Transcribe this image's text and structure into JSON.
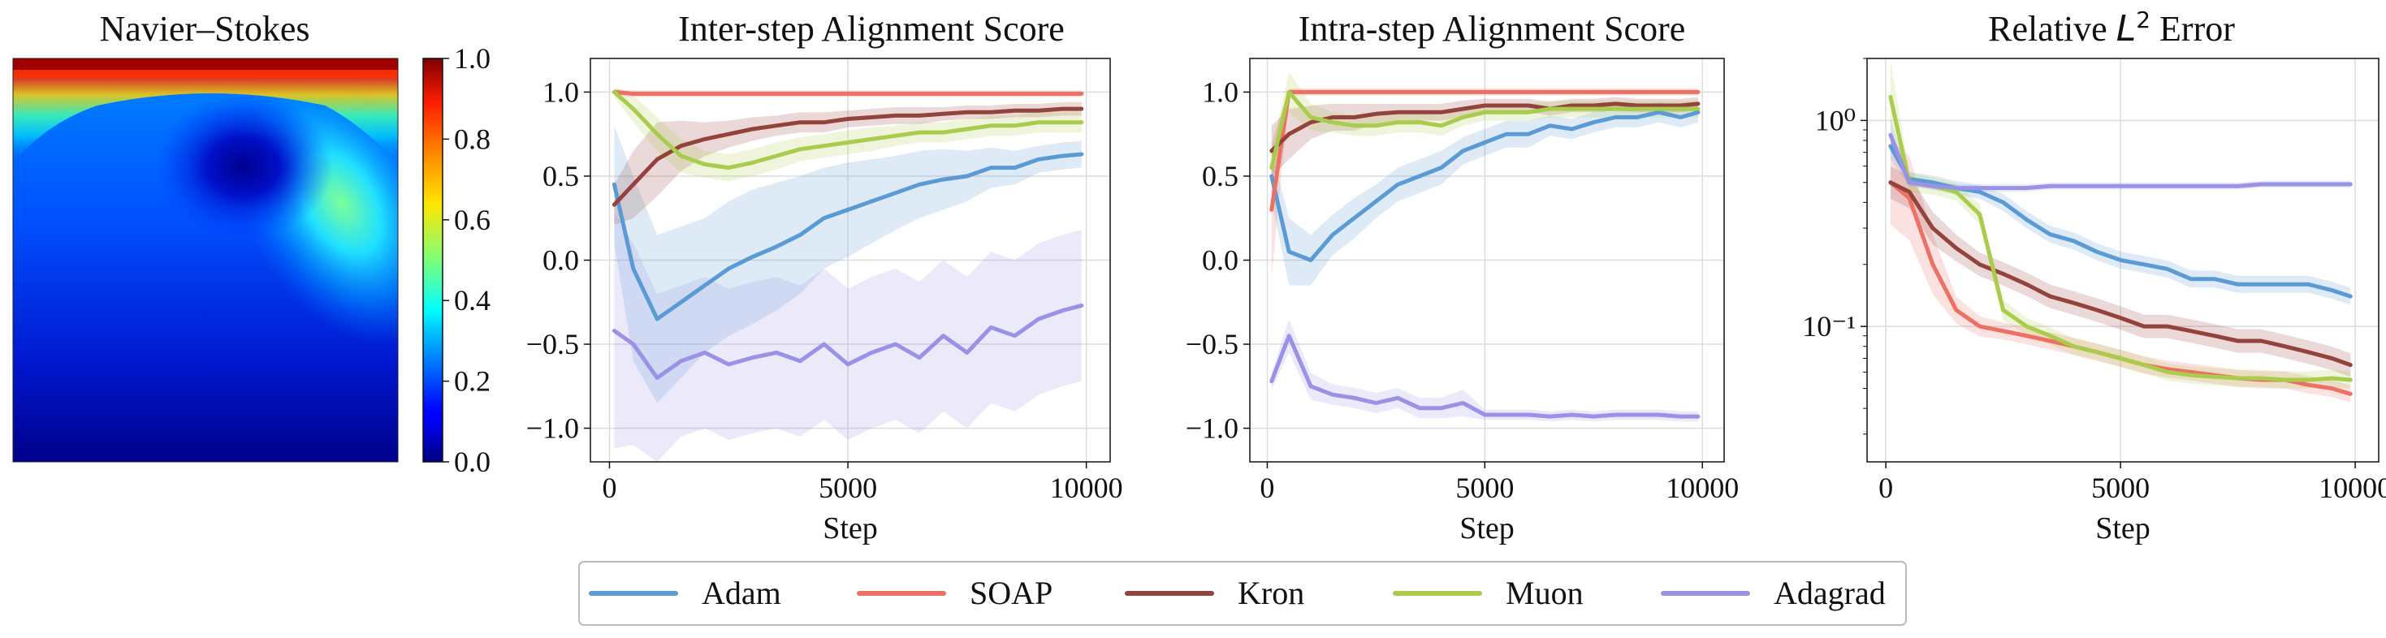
{
  "colors": {
    "Adam": "#5b9bd5",
    "SOAP": "#ec7063",
    "Kron": "#94423c",
    "Muon": "#a9cc4c",
    "Adagrad": "#9a92e6"
  },
  "heatmap": {
    "title": "Navier–Stokes",
    "colorbar_ticks": [
      "0.0",
      "0.2",
      "0.4",
      "0.6",
      "0.8",
      "1.0"
    ],
    "colorbar_range": [
      0,
      1
    ],
    "colormap": "jet"
  },
  "legend": {
    "entries": [
      "Adam",
      "SOAP",
      "Kron",
      "Muon",
      "Adagrad"
    ]
  },
  "chart_data": [
    {
      "type": "line",
      "title": "Inter-step Alignment Score",
      "xlabel": "Step",
      "ylabel": "",
      "xlim": [
        -400,
        10500
      ],
      "ylim": [
        -1.2,
        1.2
      ],
      "xticks": [
        0,
        5000,
        10000
      ],
      "xtick_labels": [
        "0",
        "5000",
        "10000"
      ],
      "yticks": [
        -1.0,
        -0.5,
        0.0,
        0.5,
        1.0
      ],
      "ytick_labels": [
        "−1.0",
        "−0.5",
        "0.0",
        "0.5",
        "1.0"
      ],
      "yscale": "linear",
      "grid": true,
      "x": [
        100,
        500,
        1000,
        1500,
        2000,
        2500,
        3000,
        3500,
        4000,
        4500,
        5000,
        5500,
        6000,
        6500,
        7000,
        7500,
        8000,
        8500,
        9000,
        9500,
        9900
      ],
      "series": [
        {
          "name": "Adam",
          "values": [
            0.45,
            -0.05,
            -0.35,
            -0.25,
            -0.15,
            -0.05,
            0.02,
            0.08,
            0.15,
            0.25,
            0.3,
            0.35,
            0.4,
            0.45,
            0.48,
            0.5,
            0.55,
            0.55,
            0.6,
            0.62,
            0.63
          ],
          "band": [
            0.35,
            0.55,
            0.5,
            0.45,
            0.4,
            0.4,
            0.4,
            0.38,
            0.35,
            0.3,
            0.28,
            0.25,
            0.22,
            0.2,
            0.18,
            0.15,
            0.12,
            0.1,
            0.08,
            0.08,
            0.08
          ]
        },
        {
          "name": "SOAP",
          "values": [
            1.0,
            0.99,
            0.99,
            0.99,
            0.99,
            0.99,
            0.99,
            0.99,
            0.99,
            0.99,
            0.99,
            0.99,
            0.99,
            0.99,
            0.99,
            0.99,
            0.99,
            0.99,
            0.99,
            0.99,
            0.99
          ],
          "band": [
            0.02,
            0.02,
            0.02,
            0.02,
            0.02,
            0.02,
            0.02,
            0.02,
            0.02,
            0.02,
            0.02,
            0.02,
            0.02,
            0.02,
            0.02,
            0.02,
            0.02,
            0.02,
            0.02,
            0.02,
            0.02
          ]
        },
        {
          "name": "Kron",
          "values": [
            0.33,
            0.45,
            0.6,
            0.68,
            0.72,
            0.75,
            0.78,
            0.8,
            0.82,
            0.82,
            0.84,
            0.85,
            0.86,
            0.86,
            0.87,
            0.88,
            0.88,
            0.89,
            0.89,
            0.9,
            0.9
          ],
          "band": [
            0.12,
            0.2,
            0.22,
            0.15,
            0.1,
            0.08,
            0.07,
            0.06,
            0.06,
            0.06,
            0.05,
            0.05,
            0.05,
            0.05,
            0.04,
            0.04,
            0.04,
            0.04,
            0.04,
            0.04,
            0.04
          ]
        },
        {
          "name": "Muon",
          "values": [
            1.0,
            0.9,
            0.75,
            0.62,
            0.57,
            0.55,
            0.58,
            0.62,
            0.66,
            0.68,
            0.7,
            0.72,
            0.74,
            0.76,
            0.76,
            0.78,
            0.8,
            0.8,
            0.82,
            0.82,
            0.82
          ],
          "band": [
            0.03,
            0.08,
            0.1,
            0.1,
            0.08,
            0.08,
            0.08,
            0.08,
            0.07,
            0.07,
            0.07,
            0.07,
            0.06,
            0.06,
            0.06,
            0.06,
            0.06,
            0.06,
            0.06,
            0.06,
            0.06
          ]
        },
        {
          "name": "Adagrad",
          "values": [
            -0.42,
            -0.5,
            -0.7,
            -0.6,
            -0.55,
            -0.62,
            -0.58,
            -0.55,
            -0.6,
            -0.5,
            -0.62,
            -0.55,
            -0.5,
            -0.58,
            -0.45,
            -0.55,
            -0.4,
            -0.45,
            -0.35,
            -0.3,
            -0.27
          ],
          "band": [
            0.7,
            0.6,
            0.5,
            0.45,
            0.45,
            0.45,
            0.45,
            0.45,
            0.45,
            0.45,
            0.45,
            0.45,
            0.45,
            0.45,
            0.45,
            0.45,
            0.45,
            0.45,
            0.45,
            0.45,
            0.45
          ]
        }
      ]
    },
    {
      "type": "line",
      "title": "Intra-step Alignment Score",
      "xlabel": "Step",
      "ylabel": "",
      "xlim": [
        -400,
        10500
      ],
      "ylim": [
        -1.2,
        1.2
      ],
      "xticks": [
        0,
        5000,
        10000
      ],
      "xtick_labels": [
        "0",
        "5000",
        "10000"
      ],
      "yticks": [
        -1.0,
        -0.5,
        0.0,
        0.5,
        1.0
      ],
      "ytick_labels": [
        "−1.0",
        "−0.5",
        "0.0",
        "0.5",
        "1.0"
      ],
      "yscale": "linear",
      "grid": true,
      "x": [
        100,
        500,
        1000,
        1500,
        2000,
        2500,
        3000,
        3500,
        4000,
        4500,
        5000,
        5500,
        6000,
        6500,
        7000,
        7500,
        8000,
        8500,
        9000,
        9500,
        9900
      ],
      "series": [
        {
          "name": "Adam",
          "values": [
            0.5,
            0.05,
            0.0,
            0.15,
            0.25,
            0.35,
            0.45,
            0.5,
            0.55,
            0.65,
            0.7,
            0.75,
            0.75,
            0.8,
            0.78,
            0.82,
            0.85,
            0.85,
            0.88,
            0.85,
            0.88
          ],
          "band": [
            0.15,
            0.2,
            0.15,
            0.12,
            0.12,
            0.1,
            0.1,
            0.1,
            0.1,
            0.08,
            0.08,
            0.08,
            0.08,
            0.06,
            0.06,
            0.06,
            0.06,
            0.06,
            0.06,
            0.06,
            0.06
          ]
        },
        {
          "name": "SOAP",
          "values": [
            0.3,
            1.0,
            1.0,
            1.0,
            1.0,
            1.0,
            1.0,
            1.0,
            1.0,
            1.0,
            1.0,
            1.0,
            1.0,
            1.0,
            1.0,
            1.0,
            1.0,
            1.0,
            1.0,
            1.0,
            1.0
          ],
          "band": [
            0.4,
            0.02,
            0.02,
            0.02,
            0.02,
            0.02,
            0.02,
            0.02,
            0.02,
            0.02,
            0.02,
            0.02,
            0.02,
            0.02,
            0.02,
            0.02,
            0.02,
            0.02,
            0.02,
            0.02,
            0.02
          ]
        },
        {
          "name": "Kron",
          "values": [
            0.65,
            0.75,
            0.82,
            0.85,
            0.85,
            0.87,
            0.88,
            0.88,
            0.88,
            0.9,
            0.92,
            0.92,
            0.92,
            0.9,
            0.92,
            0.92,
            0.93,
            0.92,
            0.92,
            0.92,
            0.93
          ],
          "band": [
            0.15,
            0.15,
            0.1,
            0.08,
            0.08,
            0.06,
            0.05,
            0.05,
            0.05,
            0.05,
            0.04,
            0.04,
            0.04,
            0.04,
            0.04,
            0.04,
            0.04,
            0.04,
            0.04,
            0.04,
            0.04
          ]
        },
        {
          "name": "Muon",
          "values": [
            0.55,
            1.0,
            0.85,
            0.82,
            0.8,
            0.8,
            0.82,
            0.82,
            0.8,
            0.85,
            0.88,
            0.88,
            0.88,
            0.9,
            0.9,
            0.9,
            0.9,
            0.9,
            0.9,
            0.9,
            0.9
          ],
          "band": [
            0.1,
            0.12,
            0.08,
            0.06,
            0.06,
            0.06,
            0.06,
            0.06,
            0.06,
            0.05,
            0.05,
            0.05,
            0.05,
            0.05,
            0.05,
            0.05,
            0.05,
            0.05,
            0.05,
            0.05,
            0.05
          ]
        },
        {
          "name": "Adagrad",
          "values": [
            -0.72,
            -0.45,
            -0.75,
            -0.8,
            -0.82,
            -0.85,
            -0.82,
            -0.88,
            -0.88,
            -0.85,
            -0.92,
            -0.92,
            -0.92,
            -0.93,
            -0.92,
            -0.93,
            -0.92,
            -0.92,
            -0.92,
            -0.93,
            -0.93
          ],
          "band": [
            0.05,
            0.1,
            0.08,
            0.06,
            0.06,
            0.06,
            0.06,
            0.06,
            0.06,
            0.08,
            0.03,
            0.03,
            0.03,
            0.03,
            0.03,
            0.03,
            0.03,
            0.03,
            0.03,
            0.03,
            0.03
          ]
        }
      ]
    },
    {
      "type": "line",
      "title": "Relative L² Error",
      "title_prefix": "Relative ",
      "title_math": "L",
      "title_sup": "2",
      "title_suffix": " Error",
      "xlabel": "Step",
      "ylabel": "",
      "xlim": [
        -400,
        10500
      ],
      "ylim": [
        0.022,
        2.0
      ],
      "xticks": [
        0,
        5000,
        10000
      ],
      "xtick_labels": [
        "0",
        "5000",
        "10000"
      ],
      "yticks": [
        0.1,
        1.0
      ],
      "ytick_labels": [
        "10⁻¹",
        "10⁰"
      ],
      "yscale": "log",
      "grid": true,
      "x": [
        100,
        500,
        1000,
        1500,
        2000,
        2500,
        3000,
        3500,
        4000,
        4500,
        5000,
        5500,
        6000,
        6500,
        7000,
        7500,
        8000,
        8500,
        9000,
        9500,
        9900
      ],
      "series": [
        {
          "name": "Adam",
          "values": [
            0.75,
            0.52,
            0.5,
            0.47,
            0.45,
            0.4,
            0.33,
            0.28,
            0.26,
            0.23,
            0.21,
            0.2,
            0.19,
            0.17,
            0.17,
            0.16,
            0.16,
            0.16,
            0.16,
            0.15,
            0.14
          ],
          "band": [
            0.08,
            0.04,
            0.04,
            0.04,
            0.04,
            0.05,
            0.05,
            0.05,
            0.05,
            0.05,
            0.05,
            0.05,
            0.05,
            0.05,
            0.05,
            0.05,
            0.05,
            0.05,
            0.05,
            0.05,
            0.05
          ]
        },
        {
          "name": "SOAP",
          "values": [
            0.5,
            0.42,
            0.2,
            0.12,
            0.1,
            0.095,
            0.09,
            0.085,
            0.08,
            0.075,
            0.07,
            0.065,
            0.062,
            0.06,
            0.058,
            0.056,
            0.055,
            0.055,
            0.052,
            0.05,
            0.047
          ],
          "band": [
            0.3,
            0.3,
            0.2,
            0.08,
            0.06,
            0.05,
            0.05,
            0.05,
            0.05,
            0.05,
            0.05,
            0.05,
            0.05,
            0.05,
            0.05,
            0.05,
            0.05,
            0.05,
            0.05,
            0.05,
            0.05
          ]
        },
        {
          "name": "Kron",
          "values": [
            0.5,
            0.45,
            0.3,
            0.24,
            0.2,
            0.18,
            0.16,
            0.14,
            0.13,
            0.12,
            0.11,
            0.1,
            0.1,
            0.095,
            0.09,
            0.085,
            0.085,
            0.08,
            0.075,
            0.07,
            0.065
          ],
          "band": [
            0.1,
            0.1,
            0.1,
            0.08,
            0.07,
            0.07,
            0.07,
            0.07,
            0.07,
            0.07,
            0.07,
            0.07,
            0.07,
            0.07,
            0.07,
            0.07,
            0.07,
            0.07,
            0.07,
            0.07,
            0.07
          ]
        },
        {
          "name": "Muon",
          "values": [
            1.3,
            0.5,
            0.48,
            0.45,
            0.35,
            0.12,
            0.1,
            0.09,
            0.08,
            0.075,
            0.07,
            0.065,
            0.06,
            0.058,
            0.057,
            0.056,
            0.056,
            0.055,
            0.055,
            0.056,
            0.055
          ],
          "band": [
            0.25,
            0.06,
            0.05,
            0.05,
            0.06,
            0.06,
            0.05,
            0.05,
            0.05,
            0.05,
            0.05,
            0.05,
            0.05,
            0.05,
            0.05,
            0.05,
            0.05,
            0.05,
            0.05,
            0.05,
            0.05
          ]
        },
        {
          "name": "Adagrad",
          "values": [
            0.85,
            0.5,
            0.48,
            0.47,
            0.47,
            0.47,
            0.47,
            0.48,
            0.48,
            0.48,
            0.48,
            0.48,
            0.48,
            0.48,
            0.48,
            0.48,
            0.49,
            0.49,
            0.49,
            0.49,
            0.49
          ],
          "band": [
            0.1,
            0.02,
            0.02,
            0.02,
            0.02,
            0.02,
            0.02,
            0.02,
            0.02,
            0.02,
            0.02,
            0.02,
            0.02,
            0.02,
            0.02,
            0.02,
            0.02,
            0.02,
            0.02,
            0.02,
            0.02
          ]
        }
      ]
    }
  ]
}
